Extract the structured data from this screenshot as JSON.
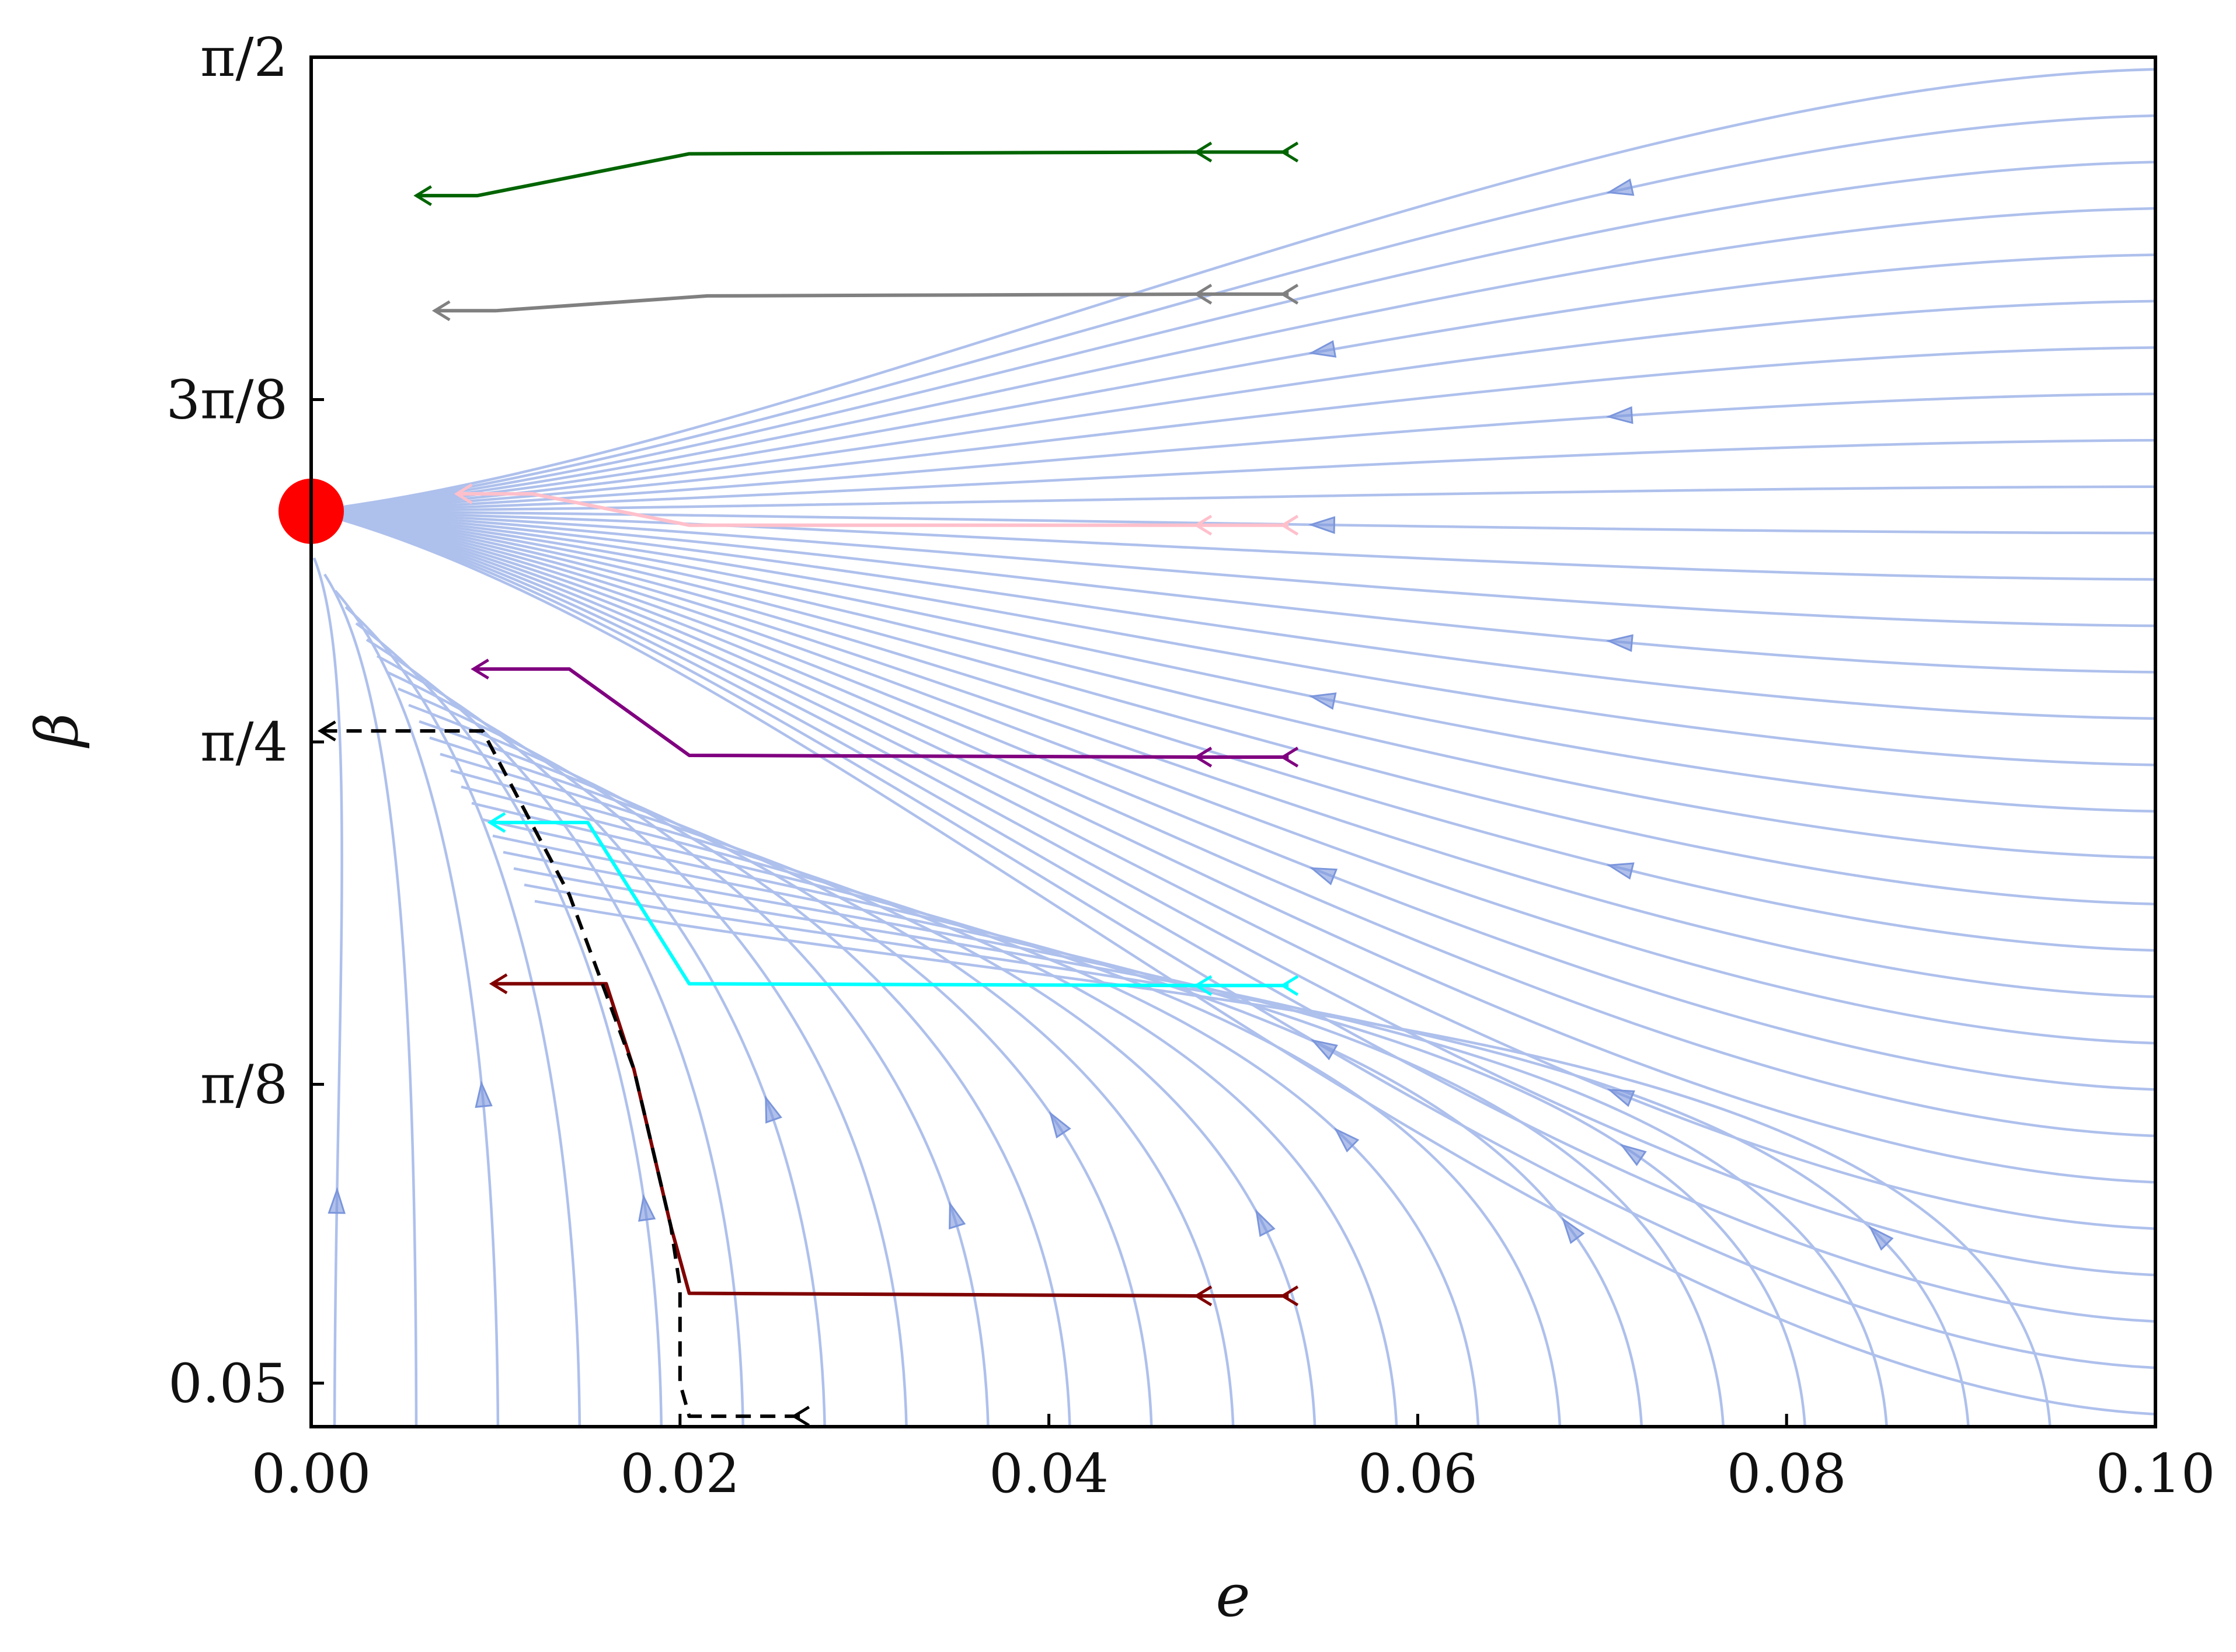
{
  "chart_data": {
    "type": "line",
    "title": "",
    "xlabel": "e",
    "ylabel": "β",
    "xlim": [
      0.0,
      0.1
    ],
    "ylim": [
      0.0,
      1.5708
    ],
    "x_ticks": [
      {
        "value": 0.0,
        "label": "0.00"
      },
      {
        "value": 0.02,
        "label": "0.02"
      },
      {
        "value": 0.04,
        "label": "0.04"
      },
      {
        "value": 0.06,
        "label": "0.06"
      },
      {
        "value": 0.08,
        "label": "0.08"
      },
      {
        "value": 0.1,
        "label": "0.10"
      }
    ],
    "y_ticks": [
      {
        "value": 0.05,
        "label": "0.05"
      },
      {
        "value": 0.3927,
        "label": "π/8"
      },
      {
        "value": 0.7854,
        "label": "π/4"
      },
      {
        "value": 1.1781,
        "label": "3π/8"
      },
      {
        "value": 1.5708,
        "label": "π/2"
      }
    ],
    "grid": false,
    "legend": "none",
    "background_field": {
      "kind": "streamplot",
      "color": "#aec0ec",
      "arrow_color": "#7b96dc",
      "focus_point": [
        0.0,
        1.05
      ]
    },
    "fixed_point": {
      "x": 0.0,
      "y": 1.05,
      "color": "#ff0000"
    },
    "series": [
      {
        "color": "#006400",
        "style": "solid",
        "points": [
          [
            0.053,
            1.462
          ],
          [
            0.048,
            1.462
          ],
          [
            0.0205,
            1.46
          ],
          [
            0.009,
            1.412
          ],
          [
            0.0057,
            1.412
          ]
        ]
      },
      {
        "color": "#808080",
        "style": "solid",
        "points": [
          [
            0.053,
            1.299
          ],
          [
            0.048,
            1.299
          ],
          [
            0.0215,
            1.297
          ],
          [
            0.01,
            1.28
          ],
          [
            0.0067,
            1.28
          ]
        ]
      },
      {
        "color": "#ffc0cb",
        "style": "solid",
        "points": [
          [
            0.053,
            1.034
          ],
          [
            0.048,
            1.034
          ],
          [
            0.0205,
            1.034
          ],
          [
            0.012,
            1.07
          ],
          [
            0.0079,
            1.07
          ]
        ]
      },
      {
        "color": "#800080",
        "style": "solid",
        "points": [
          [
            0.053,
            0.768
          ],
          [
            0.048,
            0.768
          ],
          [
            0.0205,
            0.77
          ],
          [
            0.014,
            0.869
          ],
          [
            0.0088,
            0.869
          ]
        ]
      },
      {
        "color": "#00ffff",
        "style": "solid",
        "points": [
          [
            0.053,
            0.506
          ],
          [
            0.048,
            0.506
          ],
          [
            0.0205,
            0.508
          ],
          [
            0.015,
            0.693
          ],
          [
            0.0097,
            0.693
          ]
        ]
      },
      {
        "color": "#800000",
        "style": "solid",
        "points": [
          [
            0.053,
            0.15
          ],
          [
            0.048,
            0.15
          ],
          [
            0.0205,
            0.153
          ],
          [
            0.0195,
            0.23
          ],
          [
            0.0175,
            0.41
          ],
          [
            0.016,
            0.508
          ],
          [
            0.0098,
            0.508
          ]
        ]
      },
      {
        "color": "#000000",
        "style": "dashed",
        "points": [
          [
            0.0265,
            0.012
          ],
          [
            0.0205,
            0.012
          ],
          [
            0.02,
            0.05
          ],
          [
            0.02,
            0.16
          ],
          [
            0.0195,
            0.23
          ],
          [
            0.0175,
            0.41
          ],
          [
            0.014,
            0.61
          ],
          [
            0.0093,
            0.798
          ],
          [
            0.0005,
            0.798
          ]
        ]
      }
    ]
  }
}
